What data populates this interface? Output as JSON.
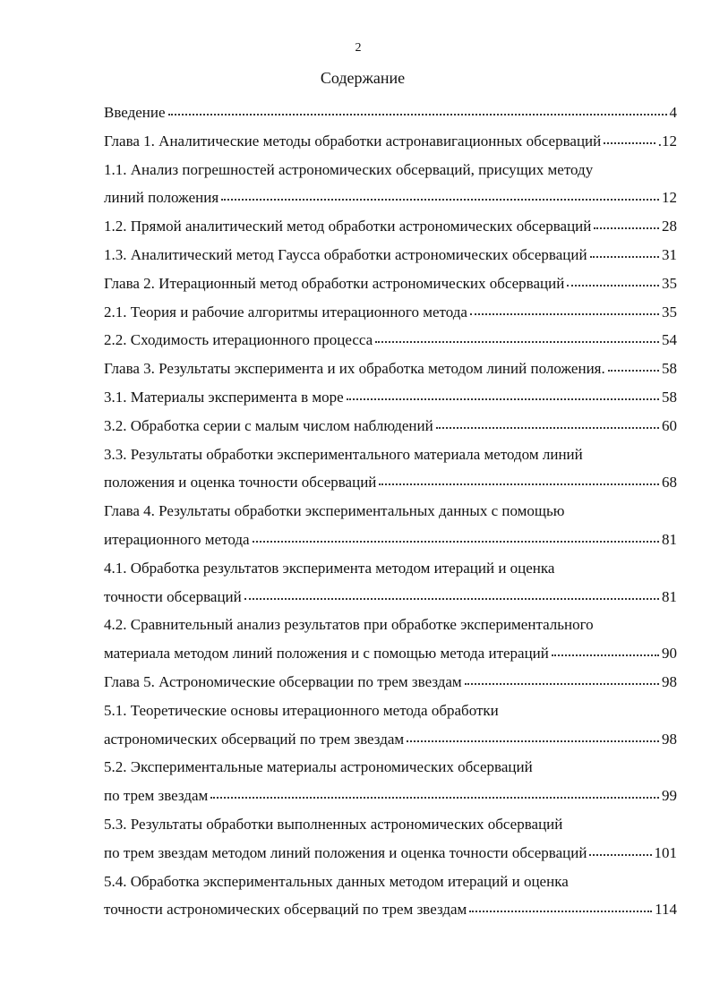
{
  "page_number": "2",
  "title": "Содержание",
  "entries": [
    {
      "text": "Введение",
      "page": "4"
    },
    {
      "text": "Глава 1. Аналитические методы обработки астронавигационных обсерваций",
      "page": ".12"
    },
    {
      "first_line": "1.1. Анализ погрешностей астрономических обсерваций, присущих методу",
      "text": "линий положения",
      "page": "12"
    },
    {
      "text": "1.2. Прямой аналитический метод обработки астрономических обсерваций",
      "page": "28"
    },
    {
      "text": "1.3. Аналитический метод Гаусса обработки астрономических обсерваций",
      "page": "31"
    },
    {
      "text": "Глава 2. Итерационный метод обработки астрономических обсерваций",
      "page": "35"
    },
    {
      "text": "2.1. Теория и рабочие алгоритмы итерационного метода",
      "page": "35"
    },
    {
      "text": "2.2. Сходимость итерационного процесса",
      "page": "54"
    },
    {
      "text": "Глава 3. Результаты эксперимента и их обработка методом линий положения.",
      "page": "58"
    },
    {
      "text": "3.1. Материалы эксперимента в море",
      "page": "58"
    },
    {
      "text": "3.2. Обработка серии с малым числом наблюдений",
      "page": "60"
    },
    {
      "first_line": "3.3. Результаты обработки экспериментального материала методом линий",
      "text": "положения и оценка точности обсерваций",
      "page": "68"
    },
    {
      "first_line": "Глава 4. Результаты обработки экспериментальных данных с помощью",
      "text": "итерационного метода",
      "page": "81"
    },
    {
      "first_line": "4.1. Обработка результатов эксперимента  методом итераций и оценка",
      "text": "точности обсерваций",
      "page": "81"
    },
    {
      "first_line": "4.2. Сравнительный анализ результатов при обработке экспериментального",
      "text": "материала методом линий положения и с помощью метода итераций",
      "page": "90"
    },
    {
      "text": "Глава 5. Астрономические обсервации по трем звездам",
      "page": "98"
    },
    {
      "first_line": "5.1. Теоретические основы итерационного метода обработки",
      "text": "астрономических обсерваций по трем звездам",
      "page": "98"
    },
    {
      "first_line": "5.2. Экспериментальные материалы астрономических обсерваций",
      "text": "по трем звездам",
      "page": "99"
    },
    {
      "first_line": "5.3. Результаты обработки выполненных астрономических обсерваций",
      "text": "по трем звездам методом линий положения и оценка точности обсерваций",
      "page": "101"
    },
    {
      "first_line": "5.4. Обработка экспериментальных данных методом итераций и оценка",
      "text": "точности астрономических обсерваций по трем звездам",
      "page": "114"
    }
  ]
}
